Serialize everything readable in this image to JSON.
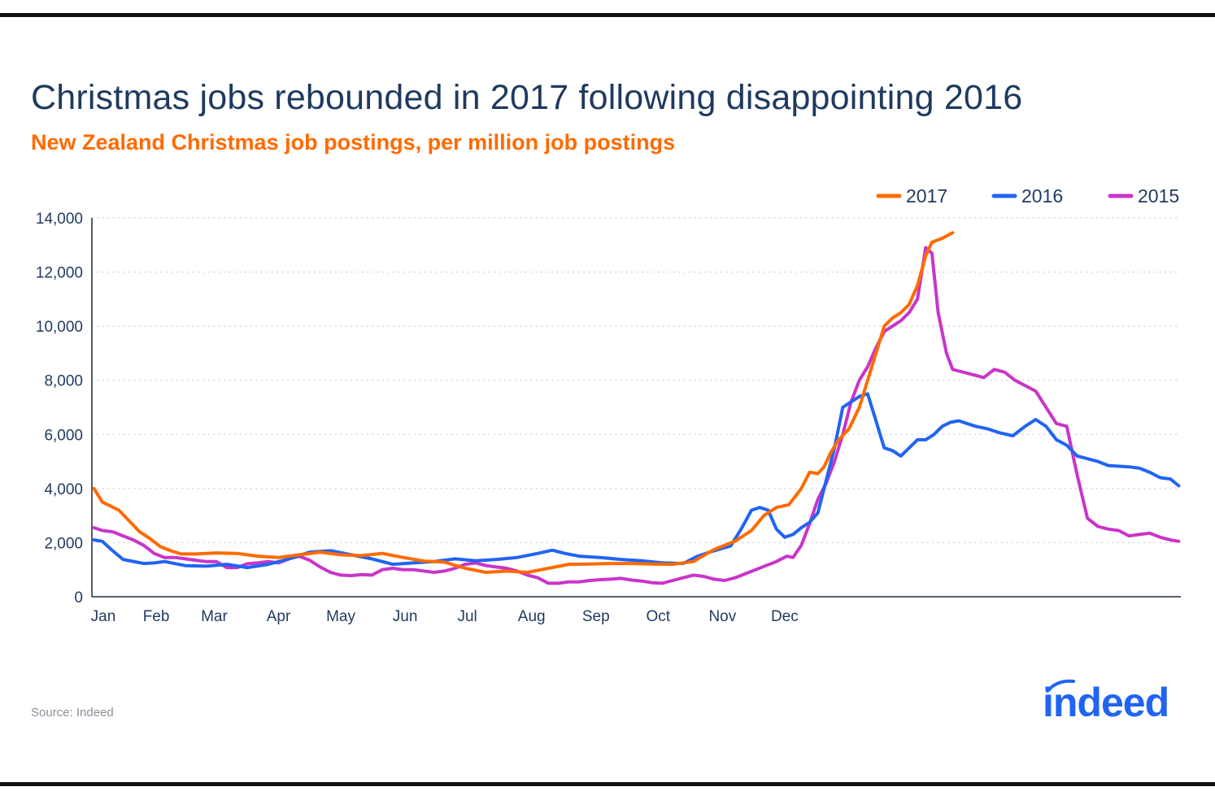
{
  "title": "Christmas jobs rebounded in 2017 following disappointing 2016",
  "subtitle": "New Zealand Christmas job postings, per million job postings",
  "source": "Source: Indeed",
  "logo_text": "indeed",
  "chart_data": {
    "type": "line",
    "ylim": [
      0,
      14000
    ],
    "yticks": [
      0,
      2000,
      4000,
      6000,
      8000,
      10000,
      12000,
      14000
    ],
    "ytick_labels": [
      "0",
      "2,000",
      "4,000",
      "6,000",
      "8,000",
      "10,000",
      "12,000",
      "14,000"
    ],
    "months": [
      "Jan",
      "Feb",
      "Mar",
      "Apr",
      "May",
      "Jun",
      "Jul",
      "Aug",
      "Sep",
      "Oct",
      "Nov",
      "Dec"
    ],
    "legend_position": "top-right",
    "grid": "horizontal-dotted",
    "series": [
      {
        "name": "2017",
        "color": "#ff6a00",
        "points": [
          [
            1,
            4000
          ],
          [
            5,
            3500
          ],
          [
            9,
            3350
          ],
          [
            13,
            3200
          ],
          [
            18,
            2800
          ],
          [
            23,
            2400
          ],
          [
            28,
            2150
          ],
          [
            33,
            1850
          ],
          [
            38,
            1700
          ],
          [
            43,
            1580
          ],
          [
            50,
            1580
          ],
          [
            60,
            1620
          ],
          [
            70,
            1600
          ],
          [
            80,
            1500
          ],
          [
            90,
            1450
          ],
          [
            100,
            1550
          ],
          [
            110,
            1650
          ],
          [
            120,
            1550
          ],
          [
            130,
            1520
          ],
          [
            140,
            1600
          ],
          [
            150,
            1450
          ],
          [
            160,
            1320
          ],
          [
            170,
            1280
          ],
          [
            180,
            1050
          ],
          [
            190,
            900
          ],
          [
            200,
            950
          ],
          [
            210,
            900
          ],
          [
            220,
            1050
          ],
          [
            230,
            1200
          ],
          [
            240,
            1210
          ],
          [
            250,
            1230
          ],
          [
            260,
            1230
          ],
          [
            270,
            1210
          ],
          [
            280,
            1200
          ],
          [
            290,
            1300
          ],
          [
            300,
            1750
          ],
          [
            310,
            2050
          ],
          [
            318,
            2450
          ],
          [
            324,
            3000
          ],
          [
            330,
            3300
          ],
          [
            336,
            3400
          ],
          [
            342,
            4000
          ],
          [
            346,
            4600
          ],
          [
            350,
            4550
          ],
          [
            353,
            4800
          ],
          [
            356,
            5300
          ],
          [
            360,
            5800
          ],
          [
            365,
            6200
          ],
          [
            370,
            7000
          ],
          [
            374,
            8000
          ],
          [
            378,
            9000
          ],
          [
            382,
            10000
          ],
          [
            386,
            10300
          ],
          [
            390,
            10500
          ],
          [
            394,
            10800
          ],
          [
            398,
            11500
          ],
          [
            402,
            12600
          ],
          [
            405,
            13100
          ],
          [
            410,
            13250
          ],
          [
            415,
            13450
          ]
        ]
      },
      {
        "name": "2016",
        "color": "#2164f3",
        "points": [
          [
            1,
            2100
          ],
          [
            5,
            2050
          ],
          [
            10,
            1700
          ],
          [
            15,
            1380
          ],
          [
            25,
            1230
          ],
          [
            30,
            1250
          ],
          [
            35,
            1300
          ],
          [
            45,
            1150
          ],
          [
            55,
            1130
          ],
          [
            65,
            1200
          ],
          [
            75,
            1080
          ],
          [
            85,
            1200
          ],
          [
            95,
            1400
          ],
          [
            105,
            1650
          ],
          [
            115,
            1700
          ],
          [
            125,
            1550
          ],
          [
            135,
            1400
          ],
          [
            145,
            1200
          ],
          [
            155,
            1250
          ],
          [
            165,
            1300
          ],
          [
            175,
            1400
          ],
          [
            185,
            1330
          ],
          [
            195,
            1380
          ],
          [
            205,
            1450
          ],
          [
            215,
            1600
          ],
          [
            222,
            1720
          ],
          [
            228,
            1600
          ],
          [
            235,
            1500
          ],
          [
            245,
            1450
          ],
          [
            255,
            1380
          ],
          [
            265,
            1330
          ],
          [
            275,
            1250
          ],
          [
            285,
            1230
          ],
          [
            292,
            1500
          ],
          [
            300,
            1700
          ],
          [
            308,
            1880
          ],
          [
            313,
            2500
          ],
          [
            318,
            3200
          ],
          [
            322,
            3300
          ],
          [
            326,
            3200
          ],
          [
            330,
            2500
          ],
          [
            334,
            2200
          ],
          [
            338,
            2300
          ],
          [
            342,
            2550
          ],
          [
            346,
            2750
          ],
          [
            350,
            3100
          ],
          [
            353,
            4000
          ],
          [
            358,
            5500
          ],
          [
            362,
            7000
          ],
          [
            366,
            7200
          ],
          [
            370,
            7400
          ],
          [
            374,
            7500
          ],
          [
            378,
            6500
          ],
          [
            382,
            5500
          ],
          [
            386,
            5400
          ],
          [
            390,
            5200
          ],
          [
            394,
            5500
          ],
          [
            398,
            5800
          ],
          [
            402,
            5800
          ],
          [
            406,
            6000
          ],
          [
            410,
            6300
          ],
          [
            414,
            6450
          ],
          [
            418,
            6500
          ],
          [
            422,
            6400
          ],
          [
            426,
            6300
          ],
          [
            432,
            6200
          ],
          [
            438,
            6050
          ],
          [
            444,
            5950
          ],
          [
            450,
            6300
          ],
          [
            455,
            6550
          ],
          [
            460,
            6300
          ],
          [
            465,
            5800
          ],
          [
            470,
            5600
          ],
          [
            475,
            5200
          ],
          [
            480,
            5100
          ],
          [
            485,
            5000
          ],
          [
            490,
            4850
          ],
          [
            500,
            4800
          ],
          [
            505,
            4750
          ],
          [
            510,
            4600
          ],
          [
            515,
            4400
          ],
          [
            520,
            4350
          ],
          [
            524,
            4100
          ]
        ]
      },
      {
        "name": "2015",
        "color": "#c935c9",
        "points": [
          [
            1,
            2550
          ],
          [
            5,
            2450
          ],
          [
            10,
            2400
          ],
          [
            15,
            2250
          ],
          [
            20,
            2100
          ],
          [
            25,
            1900
          ],
          [
            30,
            1600
          ],
          [
            35,
            1450
          ],
          [
            40,
            1450
          ],
          [
            45,
            1400
          ],
          [
            50,
            1350
          ],
          [
            55,
            1300
          ],
          [
            60,
            1300
          ],
          [
            65,
            1080
          ],
          [
            70,
            1080
          ],
          [
            75,
            1220
          ],
          [
            80,
            1250
          ],
          [
            85,
            1300
          ],
          [
            90,
            1250
          ],
          [
            95,
            1400
          ],
          [
            100,
            1500
          ],
          [
            105,
            1350
          ],
          [
            110,
            1100
          ],
          [
            115,
            900
          ],
          [
            120,
            800
          ],
          [
            125,
            780
          ],
          [
            130,
            820
          ],
          [
            135,
            800
          ],
          [
            140,
            1000
          ],
          [
            145,
            1050
          ],
          [
            150,
            1000
          ],
          [
            155,
            1000
          ],
          [
            160,
            950
          ],
          [
            165,
            900
          ],
          [
            170,
            950
          ],
          [
            175,
            1050
          ],
          [
            180,
            1200
          ],
          [
            185,
            1250
          ],
          [
            190,
            1150
          ],
          [
            195,
            1100
          ],
          [
            200,
            1050
          ],
          [
            205,
            950
          ],
          [
            210,
            800
          ],
          [
            215,
            700
          ],
          [
            220,
            500
          ],
          [
            225,
            500
          ],
          [
            230,
            550
          ],
          [
            235,
            550
          ],
          [
            240,
            600
          ],
          [
            245,
            630
          ],
          [
            250,
            650
          ],
          [
            255,
            680
          ],
          [
            260,
            620
          ],
          [
            265,
            580
          ],
          [
            270,
            520
          ],
          [
            275,
            500
          ],
          [
            280,
            600
          ],
          [
            285,
            700
          ],
          [
            290,
            800
          ],
          [
            295,
            750
          ],
          [
            300,
            650
          ],
          [
            305,
            600
          ],
          [
            310,
            700
          ],
          [
            315,
            850
          ],
          [
            320,
            1000
          ],
          [
            325,
            1150
          ],
          [
            330,
            1300
          ],
          [
            335,
            1500
          ],
          [
            338,
            1450
          ],
          [
            342,
            1900
          ],
          [
            346,
            2700
          ],
          [
            350,
            3600
          ],
          [
            354,
            4200
          ],
          [
            358,
            5000
          ],
          [
            362,
            6000
          ],
          [
            366,
            7200
          ],
          [
            370,
            8000
          ],
          [
            374,
            8500
          ],
          [
            378,
            9200
          ],
          [
            382,
            9800
          ],
          [
            386,
            10000
          ],
          [
            390,
            10200
          ],
          [
            394,
            10500
          ],
          [
            398,
            11000
          ],
          [
            402,
            12900
          ],
          [
            405,
            12700
          ],
          [
            408,
            10500
          ],
          [
            412,
            9000
          ],
          [
            415,
            8400
          ],
          [
            420,
            8300
          ],
          [
            425,
            8200
          ],
          [
            430,
            8100
          ],
          [
            435,
            8400
          ],
          [
            440,
            8300
          ],
          [
            445,
            8000
          ],
          [
            450,
            7800
          ],
          [
            455,
            7600
          ],
          [
            460,
            7000
          ],
          [
            465,
            6400
          ],
          [
            470,
            6300
          ],
          [
            475,
            4500
          ],
          [
            480,
            2900
          ],
          [
            485,
            2600
          ],
          [
            490,
            2500
          ],
          [
            495,
            2450
          ],
          [
            500,
            2250
          ],
          [
            505,
            2300
          ],
          [
            510,
            2350
          ],
          [
            515,
            2200
          ],
          [
            520,
            2100
          ],
          [
            524,
            2050
          ]
        ]
      }
    ]
  }
}
